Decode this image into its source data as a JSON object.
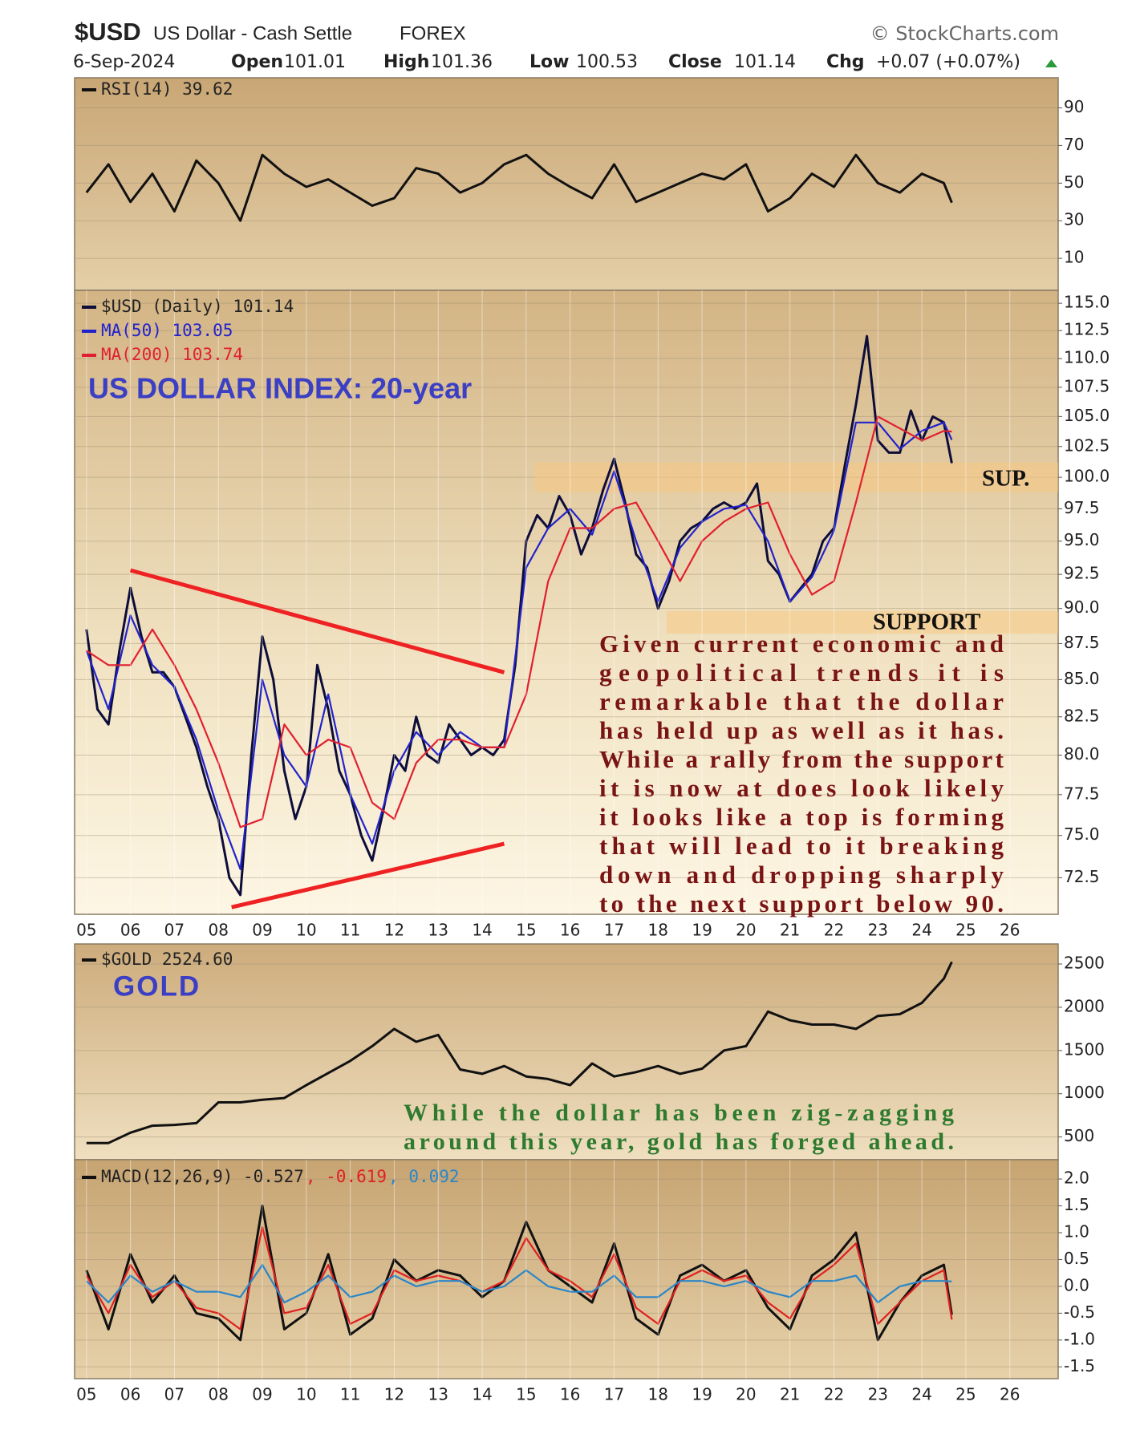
{
  "header": {
    "symbol": "$USD",
    "name": "US Dollar - Cash Settle",
    "exchange": "FOREX",
    "source": "© StockCharts.com",
    "date": "6-Sep-2024",
    "open_label": "Open",
    "open": "101.01",
    "high_label": "High",
    "high": "101.36",
    "low_label": "Low",
    "low": "100.53",
    "close_label": "Close",
    "close": "101.14",
    "chg_label": "Chg",
    "chg": "+0.07 (+0.07%)"
  },
  "chart_data": [
    {
      "type": "line",
      "xlim": [
        4.73,
        27.1
      ],
      "ylim": [
        -7,
        106
      ],
      "yticks": [
        10,
        30,
        50,
        70,
        90
      ],
      "grid": true,
      "series": [
        {
          "name": "RSI(14) 39.62",
          "color": "#111111",
          "x": [
            5,
            5.5,
            6,
            6.5,
            7,
            7.5,
            8,
            8.5,
            9,
            9.5,
            10,
            10.5,
            11,
            11.5,
            12,
            12.5,
            13,
            13.5,
            14,
            14.5,
            15,
            15.5,
            16,
            16.5,
            17,
            17.5,
            18,
            18.5,
            19,
            19.5,
            20,
            20.5,
            21,
            21.5,
            22,
            22.5,
            23,
            23.5,
            24,
            24.5,
            24.68
          ],
          "values": [
            45,
            60,
            40,
            55,
            35,
            62,
            50,
            30,
            65,
            55,
            48,
            52,
            45,
            38,
            42,
            58,
            55,
            45,
            50,
            60,
            65,
            55,
            48,
            42,
            60,
            40,
            45,
            50,
            55,
            52,
            60,
            35,
            42,
            55,
            48,
            65,
            50,
            45,
            55,
            50,
            39.62
          ]
        }
      ]
    },
    {
      "type": "line",
      "log": true,
      "xlim": [
        4.73,
        27.1
      ],
      "ylim": [
        70.4,
        116.2
      ],
      "grid": true,
      "title": "US DOLLAR INDEX: 20-year",
      "yticks": [
        72.5,
        {
          "value": 75,
          "label": "75.0"
        },
        77.5,
        {
          "value": 80,
          "label": "80.0"
        },
        82.5,
        {
          "value": 85,
          "label": "85.0"
        },
        87.5,
        {
          "value": 90,
          "label": "90.0"
        },
        92.5,
        {
          "value": 95,
          "label": "95.0"
        },
        97.5,
        {
          "value": 100,
          "label": "100.0"
        },
        102.5,
        {
          "value": 105,
          "label": "105.0"
        },
        107.5,
        {
          "value": 110,
          "label": "110.0"
        },
        112.5,
        {
          "value": 115,
          "label": "115.0"
        }
      ],
      "xticks": [
        {
          "value": 5,
          "label": "05"
        },
        {
          "value": 6,
          "label": "06"
        },
        {
          "value": 7,
          "label": "07"
        },
        {
          "value": 8,
          "label": "08"
        },
        {
          "value": 9,
          "label": "09"
        },
        10,
        11,
        12,
        13,
        14,
        15,
        16,
        17,
        18,
        19,
        20,
        21,
        22,
        23,
        24,
        25,
        26
      ],
      "zones": [
        {
          "label": "SUP.",
          "x_start": 15.2,
          "low": 98.8,
          "high": 101.2
        },
        {
          "label": "SUPPORT",
          "x_start": 18.2,
          "low": 88.2,
          "high": 89.8
        }
      ],
      "trendlines": [
        {
          "color": "#ee2222",
          "x": [
            6,
            14.5
          ],
          "values": [
            92.8,
            85.5
          ]
        },
        {
          "color": "#ee2222",
          "x": [
            8.3,
            14.5
          ],
          "values": [
            70.8,
            74.5
          ]
        }
      ],
      "annotation": [
        "Given current economic and",
        "geopolitical trends it is",
        "remarkable that the dollar",
        "has held up as well as it has.",
        "While a rally from the support",
        "it is now at does look likely",
        "it looks like a top is forming",
        "that will lead to it breaking",
        "down and dropping sharply",
        "to the next support below 90."
      ],
      "series": [
        {
          "name": "$USD (Daily) 101.14",
          "color": "#0d0d3a",
          "x": [
            5,
            5.25,
            5.5,
            5.75,
            6,
            6.25,
            6.5,
            6.75,
            7,
            7.25,
            7.5,
            7.75,
            8,
            8.25,
            8.5,
            8.75,
            9,
            9.25,
            9.5,
            9.75,
            10,
            10.25,
            10.5,
            10.75,
            11,
            11.25,
            11.5,
            11.75,
            12,
            12.25,
            12.5,
            12.75,
            13,
            13.25,
            13.5,
            13.75,
            14,
            14.25,
            14.5,
            14.75,
            15,
            15.25,
            15.5,
            15.75,
            16,
            16.25,
            16.5,
            16.75,
            17,
            17.25,
            17.5,
            17.75,
            18,
            18.25,
            18.5,
            18.75,
            19,
            19.25,
            19.5,
            19.75,
            20,
            20.25,
            20.5,
            20.75,
            21,
            21.25,
            21.5,
            21.75,
            22,
            22.25,
            22.5,
            22.75,
            23,
            23.25,
            23.5,
            23.75,
            24,
            24.25,
            24.5,
            24.68
          ],
          "values": [
            88.5,
            83,
            82,
            87,
            91.5,
            88,
            85.5,
            85.5,
            84.5,
            82.5,
            80.5,
            78,
            76,
            72.5,
            71.5,
            80,
            88,
            85,
            79,
            76,
            78,
            86,
            83,
            79,
            77.5,
            75,
            73.5,
            76.5,
            80,
            79,
            82.5,
            80,
            79.5,
            82,
            81,
            80,
            80.5,
            80,
            81,
            86,
            95,
            97,
            96,
            98.5,
            97,
            94,
            96,
            99,
            101.5,
            98,
            94,
            93,
            90,
            92,
            95,
            96,
            96.5,
            97.5,
            98,
            97.5,
            98,
            99.5,
            93.5,
            92.5,
            90.5,
            91.5,
            92.5,
            95,
            96,
            101,
            106,
            112,
            103,
            102,
            102,
            105.5,
            103,
            105,
            104.5,
            101.14
          ]
        },
        {
          "name": "MA(50) 103.05",
          "color": "#2222cc",
          "x": [
            5,
            5.5,
            6,
            6.5,
            7,
            7.5,
            8,
            8.5,
            9,
            9.5,
            10,
            10.5,
            11,
            11.5,
            12,
            12.5,
            13,
            13.5,
            14,
            14.5,
            15,
            15.5,
            16,
            16.5,
            17,
            17.5,
            18,
            18.5,
            19,
            19.5,
            20,
            20.5,
            21,
            21.5,
            22,
            22.5,
            23,
            23.5,
            24,
            24.5,
            24.68
          ],
          "values": [
            87,
            83,
            89.5,
            86,
            84.5,
            81,
            76.5,
            73,
            85,
            80,
            78,
            84,
            77.5,
            74.5,
            79,
            81.5,
            80,
            81.5,
            80.5,
            80.5,
            93,
            96,
            97.5,
            95.5,
            100.5,
            95,
            90.5,
            94.5,
            96.5,
            97.5,
            97.8,
            95,
            90.5,
            92.3,
            95.8,
            104.5,
            104.5,
            102.3,
            103.8,
            104.5,
            103.05
          ]
        },
        {
          "name": "MA(200) 103.74",
          "color": "#e02030",
          "x": [
            5,
            5.5,
            6,
            6.5,
            7,
            7.5,
            8,
            8.5,
            9,
            9.5,
            10,
            10.5,
            11,
            11.5,
            12,
            12.5,
            13,
            13.5,
            14,
            14.5,
            15,
            15.5,
            16,
            16.5,
            17,
            17.5,
            18,
            18.5,
            19,
            19.5,
            20,
            20.5,
            21,
            21.5,
            22,
            22.5,
            23,
            23.5,
            24,
            24.5,
            24.68
          ],
          "values": [
            87,
            86,
            86,
            88.5,
            86,
            83,
            79.5,
            75.5,
            76,
            82,
            80,
            81,
            80.5,
            77,
            76,
            79.5,
            81,
            81,
            80.5,
            80.5,
            84,
            92,
            96,
            96,
            97.5,
            98,
            95,
            92,
            95,
            96.5,
            97.5,
            98,
            94,
            91,
            92,
            98,
            105,
            104,
            103,
            103.8,
            103.74
          ]
        }
      ]
    },
    {
      "type": "line",
      "xlim": [
        4.73,
        27.1
      ],
      "ylim": [
        237,
        2732
      ],
      "yticks": [
        500,
        1000,
        1500,
        2000,
        2500
      ],
      "grid": true,
      "title": "GOLD",
      "annotation": [
        "While the dollar has been zig-zagging",
        "around this year, gold has forged ahead."
      ],
      "series": [
        {
          "name": "$GOLD 2524.60",
          "color": "#111111",
          "x": [
            5,
            5.5,
            6,
            6.5,
            7,
            7.5,
            8,
            8.5,
            9,
            9.5,
            10,
            10.5,
            11,
            11.5,
            12,
            12.5,
            13,
            13.5,
            14,
            14.5,
            15,
            15.5,
            16,
            16.5,
            17,
            17.5,
            18,
            18.5,
            19,
            19.5,
            20,
            20.5,
            21,
            21.5,
            22,
            22.5,
            23,
            23.5,
            24,
            24.5,
            24.68
          ],
          "values": [
            430,
            430,
            550,
            630,
            640,
            660,
            900,
            900,
            930,
            950,
            1100,
            1240,
            1380,
            1550,
            1750,
            1600,
            1680,
            1280,
            1230,
            1320,
            1200,
            1170,
            1100,
            1350,
            1200,
            1250,
            1320,
            1230,
            1290,
            1500,
            1550,
            1950,
            1850,
            1800,
            1800,
            1750,
            1900,
            1920,
            2050,
            2330,
            2524.6
          ]
        }
      ]
    },
    {
      "type": "line",
      "xlim": [
        4.73,
        27.1
      ],
      "ylim": [
        -1.72,
        2.36
      ],
      "grid": true,
      "yticks": [
        {
          "value": 2,
          "label": "2.0"
        },
        1.5,
        {
          "value": 1,
          "label": "1.0"
        },
        0.5,
        {
          "value": 0,
          "label": "0.0"
        },
        -0.5,
        {
          "value": -1,
          "label": "-1.0"
        },
        -1.5
      ],
      "xticks": [
        {
          "value": 5,
          "label": "05"
        },
        {
          "value": 6,
          "label": "06"
        },
        {
          "value": 7,
          "label": "07"
        },
        {
          "value": 8,
          "label": "08"
        },
        {
          "value": 9,
          "label": "09"
        },
        10,
        11,
        12,
        13,
        14,
        15,
        16,
        17,
        18,
        19,
        20,
        21,
        22,
        23,
        24,
        25,
        26
      ],
      "series": [
        {
          "name": "MACD(12,26,9) -0.527",
          "color": "#111111",
          "x": [
            5,
            5.5,
            6,
            6.5,
            7,
            7.5,
            8,
            8.5,
            9,
            9.5,
            10,
            10.5,
            11,
            11.5,
            12,
            12.5,
            13,
            13.5,
            14,
            14.5,
            15,
            15.5,
            16,
            16.5,
            17,
            17.5,
            18,
            18.5,
            19,
            19.5,
            20,
            20.5,
            21,
            21.5,
            22,
            22.5,
            23,
            23.5,
            24,
            24.5,
            24.68
          ],
          "values": [
            0.3,
            -0.8,
            0.6,
            -0.3,
            0.2,
            -0.5,
            -0.6,
            -1.0,
            1.5,
            -0.8,
            -0.5,
            0.6,
            -0.9,
            -0.6,
            0.5,
            0.1,
            0.3,
            0.2,
            -0.2,
            0.1,
            1.2,
            0.3,
            0.0,
            -0.3,
            0.8,
            -0.6,
            -0.9,
            0.2,
            0.4,
            0.1,
            0.3,
            -0.4,
            -0.8,
            0.2,
            0.5,
            1.0,
            -1.0,
            -0.3,
            0.2,
            0.4,
            -0.527
          ]
        },
        {
          "name": ", -0.619",
          "color": "#e02020",
          "x": [
            5,
            5.5,
            6,
            6.5,
            7,
            7.5,
            8,
            8.5,
            9,
            9.5,
            10,
            10.5,
            11,
            11.5,
            12,
            12.5,
            13,
            13.5,
            14,
            14.5,
            15,
            15.5,
            16,
            16.5,
            17,
            17.5,
            18,
            18.5,
            19,
            19.5,
            20,
            20.5,
            21,
            21.5,
            22,
            22.5,
            23,
            23.5,
            24,
            24.5,
            24.68
          ],
          "values": [
            0.2,
            -0.5,
            0.4,
            -0.2,
            0.1,
            -0.4,
            -0.5,
            -0.8,
            1.1,
            -0.5,
            -0.4,
            0.4,
            -0.7,
            -0.5,
            0.3,
            0.1,
            0.2,
            0.1,
            -0.1,
            0.1,
            0.9,
            0.3,
            0.1,
            -0.2,
            0.6,
            -0.4,
            -0.7,
            0.1,
            0.3,
            0.1,
            0.2,
            -0.3,
            -0.6,
            0.1,
            0.4,
            0.8,
            -0.7,
            -0.3,
            0.1,
            0.3,
            -0.619
          ]
        },
        {
          "name": ", 0.092",
          "color": "#2a86c8",
          "x": [
            5,
            5.5,
            6,
            6.5,
            7,
            7.5,
            8,
            8.5,
            9,
            9.5,
            10,
            10.5,
            11,
            11.5,
            12,
            12.5,
            13,
            13.5,
            14,
            14.5,
            15,
            15.5,
            16,
            16.5,
            17,
            17.5,
            18,
            18.5,
            19,
            19.5,
            20,
            20.5,
            21,
            21.5,
            22,
            22.5,
            23,
            23.5,
            24,
            24.5,
            24.68
          ],
          "values": [
            0.1,
            -0.3,
            0.2,
            -0.1,
            0.1,
            -0.1,
            -0.1,
            -0.2,
            0.4,
            -0.3,
            -0.1,
            0.2,
            -0.2,
            -0.1,
            0.2,
            0,
            0.1,
            0.1,
            -0.1,
            0,
            0.3,
            0,
            -0.1,
            -0.1,
            0.2,
            -0.2,
            -0.2,
            0.1,
            0.1,
            0,
            0.1,
            -0.1,
            -0.2,
            0.1,
            0.1,
            0.2,
            -0.3,
            0,
            0.1,
            0.1,
            0.092
          ]
        }
      ]
    }
  ]
}
